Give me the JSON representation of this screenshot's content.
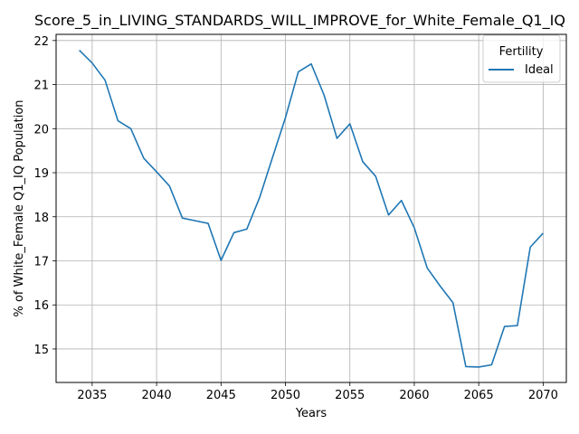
{
  "chart_data": {
    "type": "line",
    "title": "Score_5_in_LIVING_STANDARDS_WILL_IMPROVE_for_White_Female_Q1_IQ",
    "xlabel": "Years",
    "ylabel": "% of White_Female Q1_IQ Population",
    "xlim": [
      2032.2,
      2071.8
    ],
    "ylim": [
      14.24,
      22.14
    ],
    "xticks": [
      2035,
      2040,
      2045,
      2050,
      2055,
      2060,
      2065,
      2070
    ],
    "yticks": [
      15,
      16,
      17,
      18,
      19,
      20,
      21,
      22
    ],
    "grid": true,
    "legend": {
      "title": "Fertility",
      "position": "top-right"
    },
    "series": [
      {
        "name": "Ideal",
        "color": "#1f77b4",
        "x": [
          2034,
          2035,
          2036,
          2037,
          2038,
          2039,
          2040,
          2041,
          2042,
          2043,
          2044,
          2045,
          2046,
          2047,
          2048,
          2049,
          2050,
          2051,
          2052,
          2053,
          2054,
          2055,
          2056,
          2057,
          2058,
          2059,
          2060,
          2061,
          2062,
          2063,
          2064,
          2065,
          2066,
          2067,
          2068,
          2069,
          2070
        ],
        "y": [
          21.78,
          21.49,
          21.1,
          20.18,
          20.0,
          19.33,
          19.02,
          18.7,
          17.97,
          17.91,
          17.85,
          17.01,
          17.64,
          17.72,
          18.44,
          19.35,
          20.25,
          21.29,
          21.47,
          20.76,
          19.78,
          20.11,
          19.25,
          18.92,
          18.04,
          18.37,
          17.75,
          16.84,
          16.43,
          16.05,
          14.6,
          14.59,
          14.64,
          15.51,
          15.53,
          17.31,
          17.63
        ]
      }
    ]
  }
}
